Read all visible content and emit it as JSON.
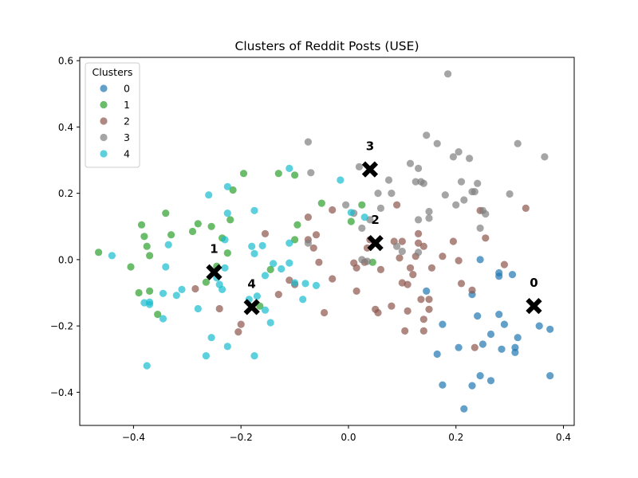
{
  "chart_data": {
    "type": "scatter",
    "title": "Clusters of Reddit Posts (USE)",
    "xlabel": "",
    "ylabel": "",
    "xlim": [
      -0.5,
      0.42
    ],
    "ylim": [
      -0.5,
      0.61
    ],
    "xticks": [
      -0.4,
      -0.2,
      0.0,
      0.2,
      0.4
    ],
    "xtick_labels": [
      "−0.4",
      "−0.2",
      "0.0",
      "0.2",
      "0.4"
    ],
    "yticks": [
      -0.4,
      -0.2,
      0.0,
      0.2,
      0.4,
      0.6
    ],
    "ytick_labels": [
      "−0.4",
      "−0.2",
      "0.0",
      "0.2",
      "0.4",
      "0.6"
    ],
    "grid": false,
    "legend": {
      "title": "Clusters",
      "placement": "upper-left"
    },
    "series": [
      {
        "name": "0",
        "color": "#1f77b4",
        "points": [
          [
            0.245,
            0.0
          ],
          [
            0.28,
            -0.04
          ],
          [
            0.28,
            -0.05
          ],
          [
            0.305,
            -0.045
          ],
          [
            0.23,
            -0.105
          ],
          [
            0.24,
            -0.17
          ],
          [
            0.28,
            -0.165
          ],
          [
            0.29,
            -0.195
          ],
          [
            0.265,
            -0.225
          ],
          [
            0.25,
            -0.255
          ],
          [
            0.285,
            -0.27
          ],
          [
            0.31,
            -0.265
          ],
          [
            0.31,
            -0.28
          ],
          [
            0.315,
            -0.235
          ],
          [
            0.355,
            -0.2
          ],
          [
            0.375,
            -0.21
          ],
          [
            0.205,
            -0.265
          ],
          [
            0.165,
            -0.285
          ],
          [
            0.175,
            -0.195
          ],
          [
            0.145,
            -0.095
          ],
          [
            0.245,
            -0.35
          ],
          [
            0.265,
            -0.365
          ],
          [
            0.23,
            -0.38
          ],
          [
            0.175,
            -0.378
          ],
          [
            0.215,
            -0.45
          ],
          [
            0.375,
            -0.35
          ]
        ]
      },
      {
        "name": "1",
        "color": "#2ca02c",
        "points": [
          [
            -0.465,
            0.022
          ],
          [
            -0.405,
            -0.022
          ],
          [
            -0.385,
            0.105
          ],
          [
            -0.38,
            0.07
          ],
          [
            -0.39,
            -0.1
          ],
          [
            -0.37,
            -0.095
          ],
          [
            -0.375,
            0.04
          ],
          [
            -0.37,
            0.012
          ],
          [
            -0.355,
            -0.165
          ],
          [
            -0.34,
            0.14
          ],
          [
            -0.33,
            0.075
          ],
          [
            -0.29,
            0.085
          ],
          [
            -0.28,
            0.108
          ],
          [
            -0.265,
            -0.068
          ],
          [
            -0.255,
            0.1
          ],
          [
            -0.245,
            -0.02
          ],
          [
            -0.235,
            0.065
          ],
          [
            -0.225,
            0.02
          ],
          [
            -0.22,
            0.12
          ],
          [
            -0.215,
            0.21
          ],
          [
            -0.195,
            0.26
          ],
          [
            -0.165,
            -0.14
          ],
          [
            -0.145,
            -0.03
          ],
          [
            -0.13,
            0.26
          ],
          [
            -0.1,
            0.255
          ],
          [
            -0.1,
            0.06
          ],
          [
            -0.095,
            0.105
          ],
          [
            -0.05,
            0.17
          ],
          [
            0.005,
            0.115
          ],
          [
            0.025,
            0.165
          ],
          [
            0.045,
            -0.008
          ]
        ]
      },
      {
        "name": "2",
        "color": "#8c564b",
        "points": [
          [
            -0.285,
            -0.088
          ],
          [
            -0.24,
            -0.148
          ],
          [
            -0.205,
            -0.218
          ],
          [
            -0.2,
            -0.195
          ],
          [
            -0.155,
            0.078
          ],
          [
            -0.13,
            -0.105
          ],
          [
            -0.11,
            -0.062
          ],
          [
            -0.1,
            -0.075
          ],
          [
            -0.075,
            0.128
          ],
          [
            -0.075,
            0.06
          ],
          [
            -0.065,
            0.035
          ],
          [
            -0.06,
            0.075
          ],
          [
            -0.045,
            -0.16
          ],
          [
            -0.03,
            0.15
          ],
          [
            -0.03,
            -0.058
          ],
          [
            0.01,
            -0.01
          ],
          [
            0.015,
            -0.025
          ],
          [
            0.015,
            -0.095
          ],
          [
            0.03,
            -0.008
          ],
          [
            0.035,
            0.035
          ],
          [
            0.04,
            0.06
          ],
          [
            0.05,
            -0.15
          ],
          [
            0.055,
            -0.16
          ],
          [
            0.06,
            -0.03
          ],
          [
            0.08,
            -0.14
          ],
          [
            0.085,
            0.055
          ],
          [
            0.09,
            0.165
          ],
          [
            0.095,
            0.005
          ],
          [
            0.1,
            -0.07
          ],
          [
            0.1,
            0.055
          ],
          [
            0.105,
            -0.215
          ],
          [
            0.11,
            -0.075
          ],
          [
            0.11,
            -0.155
          ],
          [
            0.115,
            -0.025
          ],
          [
            0.12,
            -0.045
          ],
          [
            0.125,
            0.01
          ],
          [
            0.13,
            0.078
          ],
          [
            0.13,
            0.05
          ],
          [
            0.135,
            -0.12
          ],
          [
            0.14,
            -0.18
          ],
          [
            0.14,
            -0.215
          ],
          [
            0.14,
            0.04
          ],
          [
            0.15,
            -0.15
          ],
          [
            0.15,
            -0.12
          ],
          [
            0.155,
            -0.025
          ],
          [
            0.175,
            0.01
          ],
          [
            0.195,
            0.055
          ],
          [
            0.205,
            -0.003
          ],
          [
            0.21,
            -0.072
          ],
          [
            0.23,
            -0.092
          ],
          [
            0.235,
            -0.265
          ],
          [
            0.245,
            0.148
          ],
          [
            0.255,
            0.065
          ],
          [
            0.29,
            -0.015
          ],
          [
            0.33,
            0.155
          ],
          [
            -0.055,
            -0.008
          ]
        ]
      },
      {
        "name": "3",
        "color": "#7f7f7f",
        "points": [
          [
            -0.075,
            0.355
          ],
          [
            -0.07,
            0.262
          ],
          [
            -0.075,
            0.05
          ],
          [
            -0.005,
            0.165
          ],
          [
            0.01,
            0.14
          ],
          [
            0.02,
            0.28
          ],
          [
            0.025,
            0.095
          ],
          [
            0.025,
            0.0
          ],
          [
            0.035,
            -0.005
          ],
          [
            0.04,
            0.12
          ],
          [
            0.055,
            0.2
          ],
          [
            0.06,
            0.155
          ],
          [
            0.075,
            0.24
          ],
          [
            0.08,
            0.2
          ],
          [
            0.09,
            0.04
          ],
          [
            0.1,
            0.025
          ],
          [
            0.115,
            0.29
          ],
          [
            0.125,
            0.235
          ],
          [
            0.13,
            0.275
          ],
          [
            0.13,
            0.12
          ],
          [
            0.135,
            0.235
          ],
          [
            0.13,
            0.022
          ],
          [
            0.14,
            0.23
          ],
          [
            0.145,
            0.375
          ],
          [
            0.15,
            0.145
          ],
          [
            0.15,
            0.125
          ],
          [
            0.165,
            0.35
          ],
          [
            0.18,
            0.195
          ],
          [
            0.185,
            0.56
          ],
          [
            0.195,
            0.31
          ],
          [
            0.2,
            0.165
          ],
          [
            0.205,
            0.325
          ],
          [
            0.21,
            0.235
          ],
          [
            0.215,
            0.18
          ],
          [
            0.225,
            0.305
          ],
          [
            0.23,
            0.205
          ],
          [
            0.235,
            0.205
          ],
          [
            0.24,
            0.23
          ],
          [
            0.245,
            0.095
          ],
          [
            0.25,
            0.148
          ],
          [
            0.255,
            0.138
          ],
          [
            0.3,
            0.198
          ],
          [
            0.315,
            0.35
          ],
          [
            0.365,
            0.31
          ]
        ]
      },
      {
        "name": "4",
        "color": "#17becf",
        "points": [
          [
            -0.44,
            0.012
          ],
          [
            -0.38,
            -0.13
          ],
          [
            -0.37,
            -0.128
          ],
          [
            -0.37,
            -0.135
          ],
          [
            -0.375,
            -0.32
          ],
          [
            -0.345,
            -0.102
          ],
          [
            -0.345,
            -0.178
          ],
          [
            -0.34,
            -0.022
          ],
          [
            -0.335,
            0.045
          ],
          [
            -0.32,
            -0.108
          ],
          [
            -0.31,
            -0.09
          ],
          [
            -0.28,
            -0.148
          ],
          [
            -0.265,
            -0.29
          ],
          [
            -0.26,
            0.195
          ],
          [
            -0.255,
            -0.235
          ],
          [
            -0.245,
            -0.055
          ],
          [
            -0.24,
            -0.075
          ],
          [
            -0.235,
            -0.09
          ],
          [
            -0.23,
            0.06
          ],
          [
            -0.23,
            -0.025
          ],
          [
            -0.225,
            0.22
          ],
          [
            -0.225,
            -0.262
          ],
          [
            -0.225,
            0.14
          ],
          [
            -0.185,
            -0.12
          ],
          [
            -0.18,
            0.04
          ],
          [
            -0.175,
            0.018
          ],
          [
            -0.175,
            0.148
          ],
          [
            -0.175,
            -0.29
          ],
          [
            -0.17,
            -0.11
          ],
          [
            -0.16,
            0.042
          ],
          [
            -0.155,
            -0.048
          ],
          [
            -0.155,
            -0.152
          ],
          [
            -0.145,
            -0.19
          ],
          [
            -0.14,
            -0.012
          ],
          [
            -0.125,
            -0.028
          ],
          [
            -0.11,
            -0.01
          ],
          [
            -0.11,
            0.05
          ],
          [
            -0.11,
            0.275
          ],
          [
            -0.1,
            -0.07
          ],
          [
            -0.085,
            -0.12
          ],
          [
            -0.08,
            -0.072
          ],
          [
            -0.06,
            -0.078
          ],
          [
            -0.015,
            0.24
          ],
          [
            0.005,
            0.142
          ],
          [
            0.03,
            0.128
          ]
        ]
      }
    ],
    "centroids": [
      {
        "label": "0",
        "x": 0.345,
        "y": -0.14
      },
      {
        "label": "1",
        "x": -0.25,
        "y": -0.038
      },
      {
        "label": "2",
        "x": 0.05,
        "y": 0.05
      },
      {
        "label": "3",
        "x": 0.04,
        "y": 0.272
      },
      {
        "label": "4",
        "x": -0.18,
        "y": -0.143
      }
    ]
  }
}
